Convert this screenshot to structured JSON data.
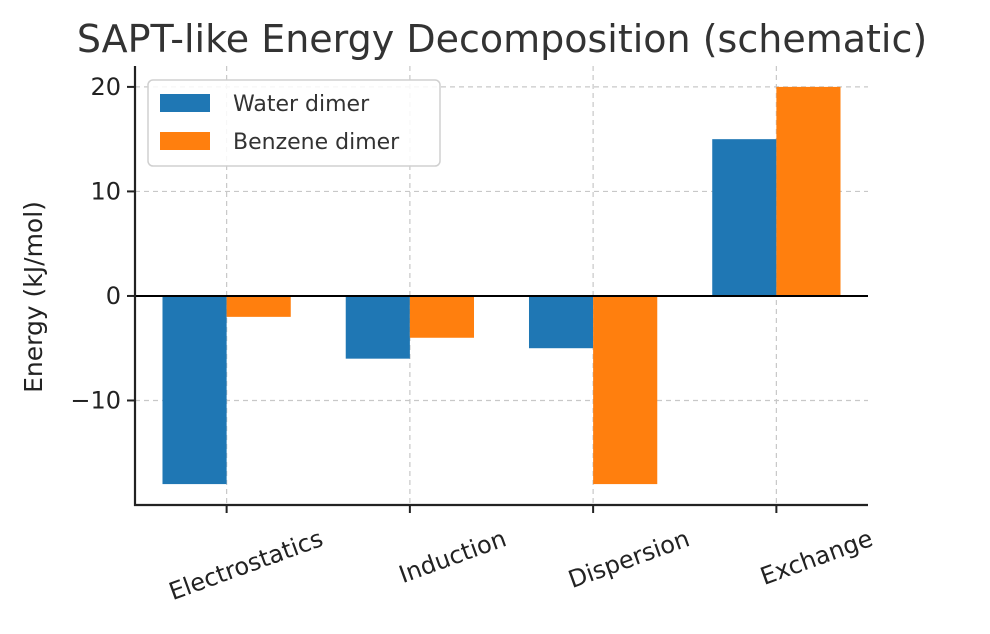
{
  "chart_data": {
    "type": "bar",
    "title": "SAPT-like Energy Decomposition (schematic)",
    "xlabel": "",
    "ylabel": "Energy (kJ/mol)",
    "categories": [
      "Electrostatics",
      "Induction",
      "Dispersion",
      "Exchange"
    ],
    "series": [
      {
        "name": "Water dimer",
        "values": [
          -18,
          -6,
          -5,
          15
        ],
        "color": "#1f77b4"
      },
      {
        "name": "Benzene dimer",
        "values": [
          -2,
          -4,
          -18,
          20
        ],
        "color": "#ff7f0e"
      }
    ],
    "ylim": [
      -20,
      22
    ],
    "yticks": [
      -10,
      0,
      10,
      20
    ],
    "ytick_labels": [
      "−10",
      "0",
      "10",
      "20"
    ],
    "grid": true,
    "legend_position": "top-left",
    "xtick_rotation_deg": -20
  }
}
